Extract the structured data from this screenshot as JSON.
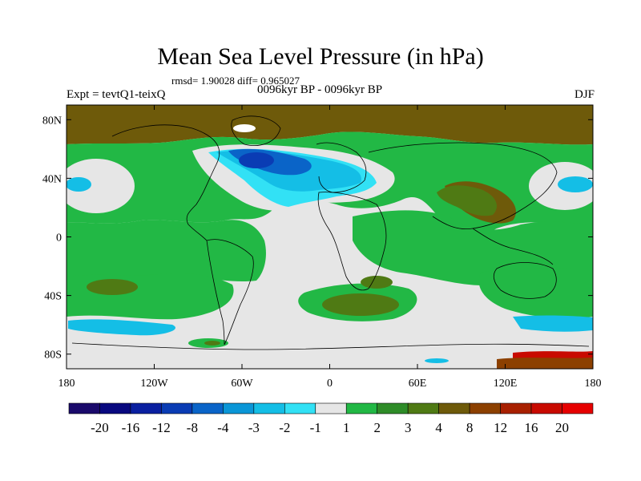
{
  "title": "Mean Sea Level Pressure (in hPa)",
  "subtitle_stats": "rmsd= 1.90028 diff= 0.965027",
  "left_label": "Expt = tevtQ1-teixQ",
  "center_label": "0096kyr BP - 0096kyr BP",
  "right_label": "DJF",
  "lat_ticks": [
    "80N",
    "40N",
    "0",
    "40S",
    "80S"
  ],
  "lon_ticks": [
    "180",
    "120W",
    "60W",
    "0",
    "60E",
    "120E",
    "180"
  ],
  "colorbar": {
    "labels": [
      "-20",
      "-16",
      "-12",
      "-8",
      "-4",
      "-3",
      "-2",
      "-1",
      "1",
      "2",
      "3",
      "4",
      "8",
      "12",
      "16",
      "20"
    ],
    "colors": [
      "#1a0a6b",
      "#08087f",
      "#0a1fa0",
      "#0a3cb4",
      "#0a64c8",
      "#0a96d7",
      "#14bee6",
      "#32e1f5",
      "#e6e6e6",
      "#22b845",
      "#2e8c28",
      "#4f7a14",
      "#6e5a0a",
      "#8c4000",
      "#a82000",
      "#c80a00",
      "#e60000"
    ]
  },
  "colors": {
    "ocean_neutral": "#e6e6e6",
    "land_outline": "#000000"
  }
}
